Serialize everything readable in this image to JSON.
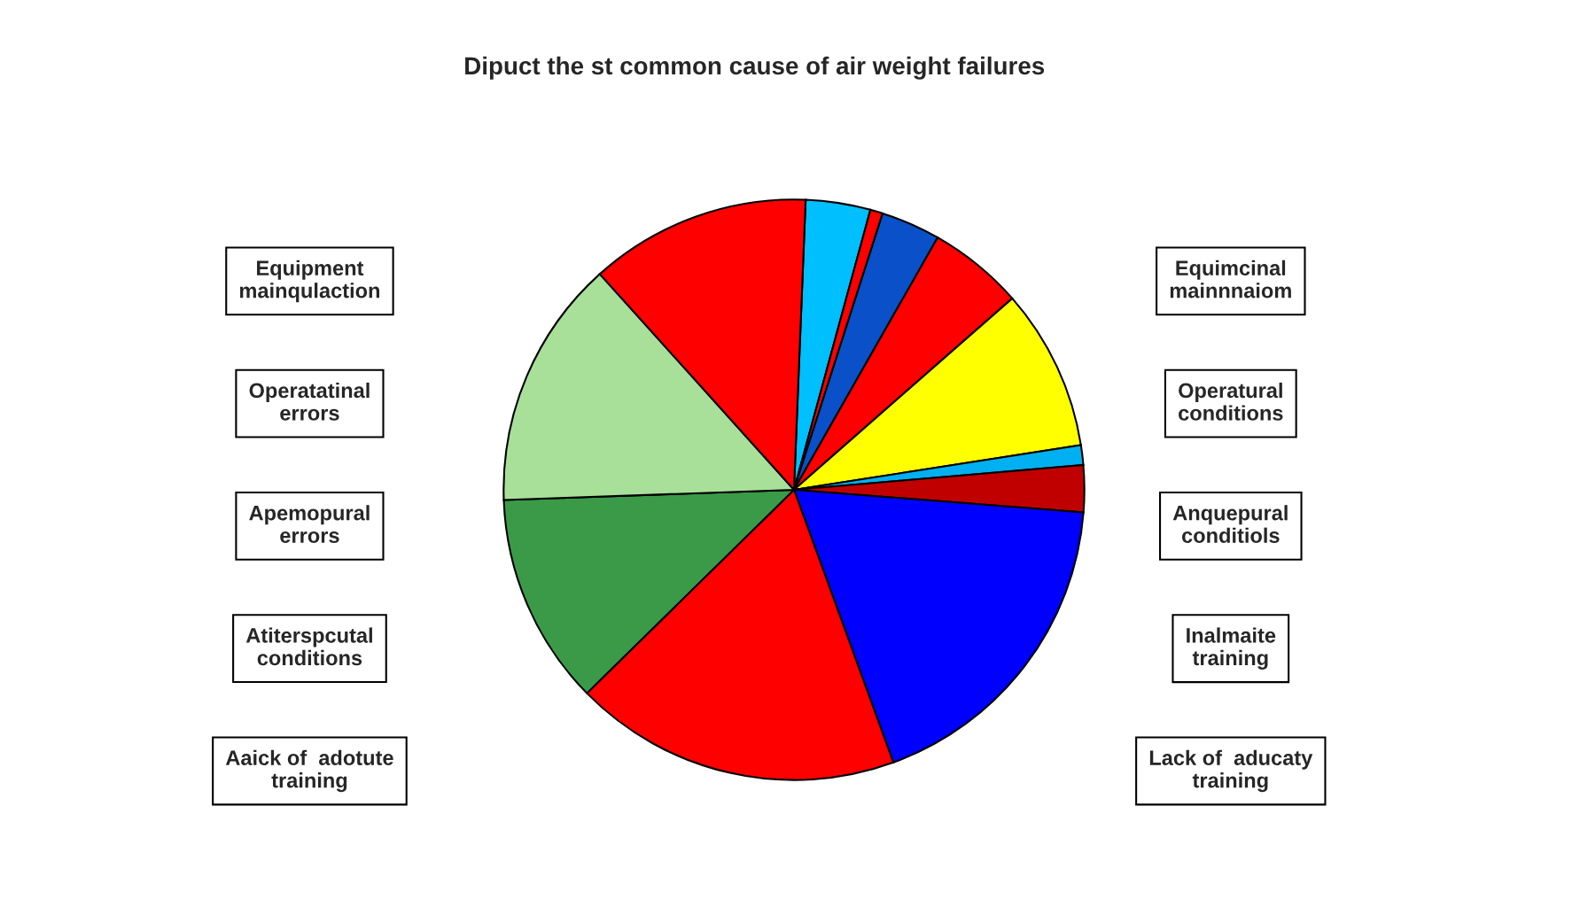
{
  "chart_data": {
    "type": "pie",
    "title": "Dipuct the st common cause of air weight failures",
    "categories": [
      null,
      null,
      null,
      null,
      null,
      null,
      null,
      null,
      null,
      null,
      null,
      null
    ],
    "values": [
      3.6,
      0.7,
      3.3,
      5.3,
      9.0,
      1.1,
      2.6,
      18.2,
      18.2,
      11.8,
      13.9,
      12.3
    ],
    "colors": [
      "#00bfff",
      "#ff0000",
      "#0a50c8",
      "#ff0000",
      "#ffff00",
      "#00b0f0",
      "#c00000",
      "#0000ff",
      "#ff0000",
      "#3a9a48",
      "#a8e09a",
      "#ff0000"
    ],
    "annotations": [
      "Equipment\nmainqulaction",
      "Operatatinal\nerrors",
      "Apemopural\nerrors",
      "Atiterspcutal\nconditions",
      "Aaick of  adotute\ntraining",
      "Equimcinal\nmainnnaiom",
      "Operatural\nconditions",
      "Anquepural\nconditiols",
      "Inalmaite\ntraining",
      "Lack of  aducaty\ntraining"
    ]
  }
}
